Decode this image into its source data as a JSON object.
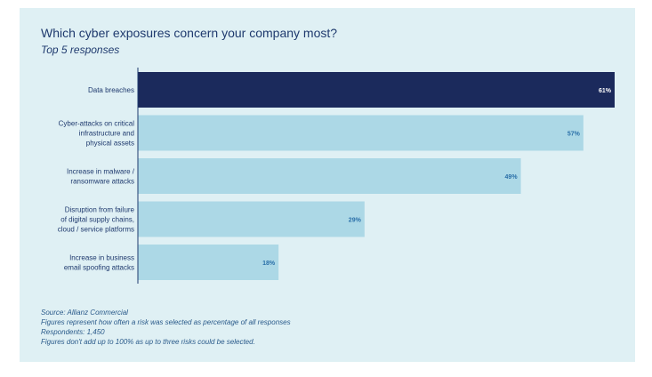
{
  "title": "Which cyber exposures concern your company most?",
  "subtitle": "Top 5 responses",
  "colors": {
    "panel": "#dff0f4",
    "highlight_bar": "#1b2a5c",
    "bar": "#acd8e6",
    "title": "#1f3a6e",
    "label": "#1f3a6e",
    "value_dark": "#ffffff",
    "value_light": "#2a6fa8"
  },
  "chart_data": {
    "type": "bar",
    "orientation": "horizontal",
    "categories": [
      [
        "Data breaches"
      ],
      [
        "Cyber-attacks on critical",
        "infrastructure and",
        "physical assets"
      ],
      [
        "Increase in malware /",
        "ransomware attacks"
      ],
      [
        "Disruption from failure",
        "of digital supply chains,",
        "cloud / service platforms"
      ],
      [
        "Increase in business",
        "email spoofing attacks"
      ]
    ],
    "values": [
      61,
      57,
      49,
      29,
      18
    ],
    "value_labels": [
      "61%",
      "57%",
      "49%",
      "29%",
      "18%"
    ],
    "highlight_index": 0,
    "xlim": [
      0,
      61
    ],
    "grid": false,
    "legend": "none"
  },
  "notes": [
    "Source: Allianz Commercial",
    "Figures represent how often a risk was selected as percentage of all responses",
    "Respondents: 1,450",
    "Figures don't add up to 100% as up to three risks could be selected."
  ]
}
